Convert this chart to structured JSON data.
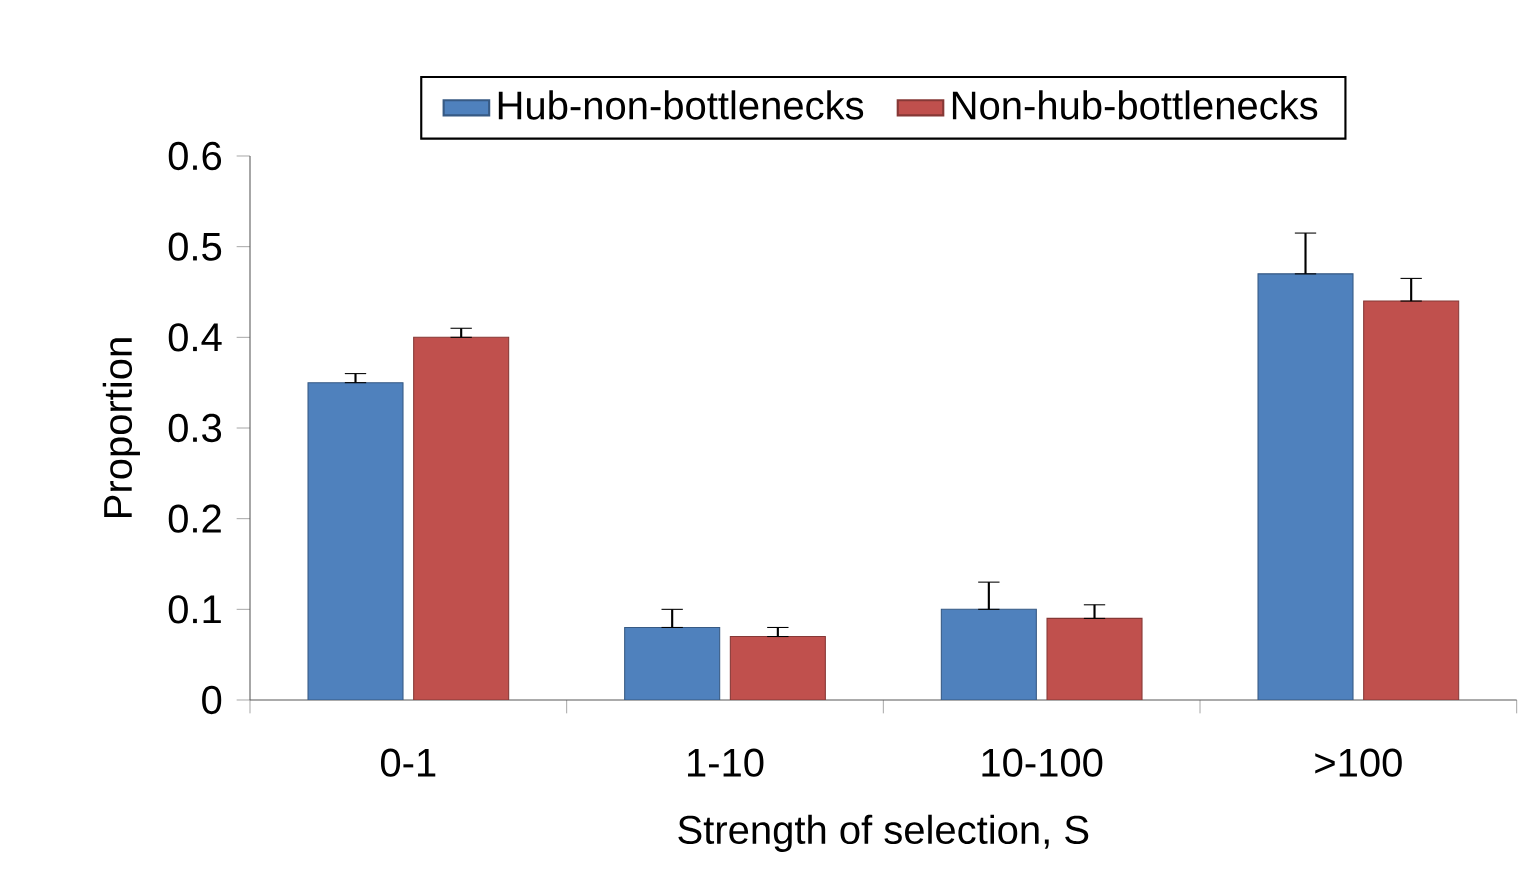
{
  "chart_data": {
    "type": "bar",
    "xlabel": "Strength of selection, S",
    "ylabel": "Proportion",
    "categories": [
      "0-1",
      "1-10",
      "10-100",
      ">100"
    ],
    "series": [
      {
        "name": "Hub-non-bottlenecks",
        "color": "#4f81bd",
        "values": [
          0.35,
          0.08,
          0.1,
          0.47
        ],
        "errors": [
          [
            0.35,
            0.36
          ],
          [
            0.08,
            0.1
          ],
          [
            0.1,
            0.13
          ],
          [
            0.47,
            0.515
          ]
        ]
      },
      {
        "name": "Non-hub-bottlenecks",
        "color": "#c0504d",
        "values": [
          0.4,
          0.07,
          0.09,
          0.44
        ],
        "errors": [
          [
            0.4,
            0.41
          ],
          [
            0.07,
            0.08
          ],
          [
            0.09,
            0.105
          ],
          [
            0.44,
            0.465
          ]
        ]
      }
    ],
    "ylim": [
      0,
      0.6
    ],
    "yticks": [
      0,
      0.1,
      0.2,
      0.3,
      0.4,
      0.5,
      0.6
    ],
    "legend": "top",
    "grid": false
  }
}
